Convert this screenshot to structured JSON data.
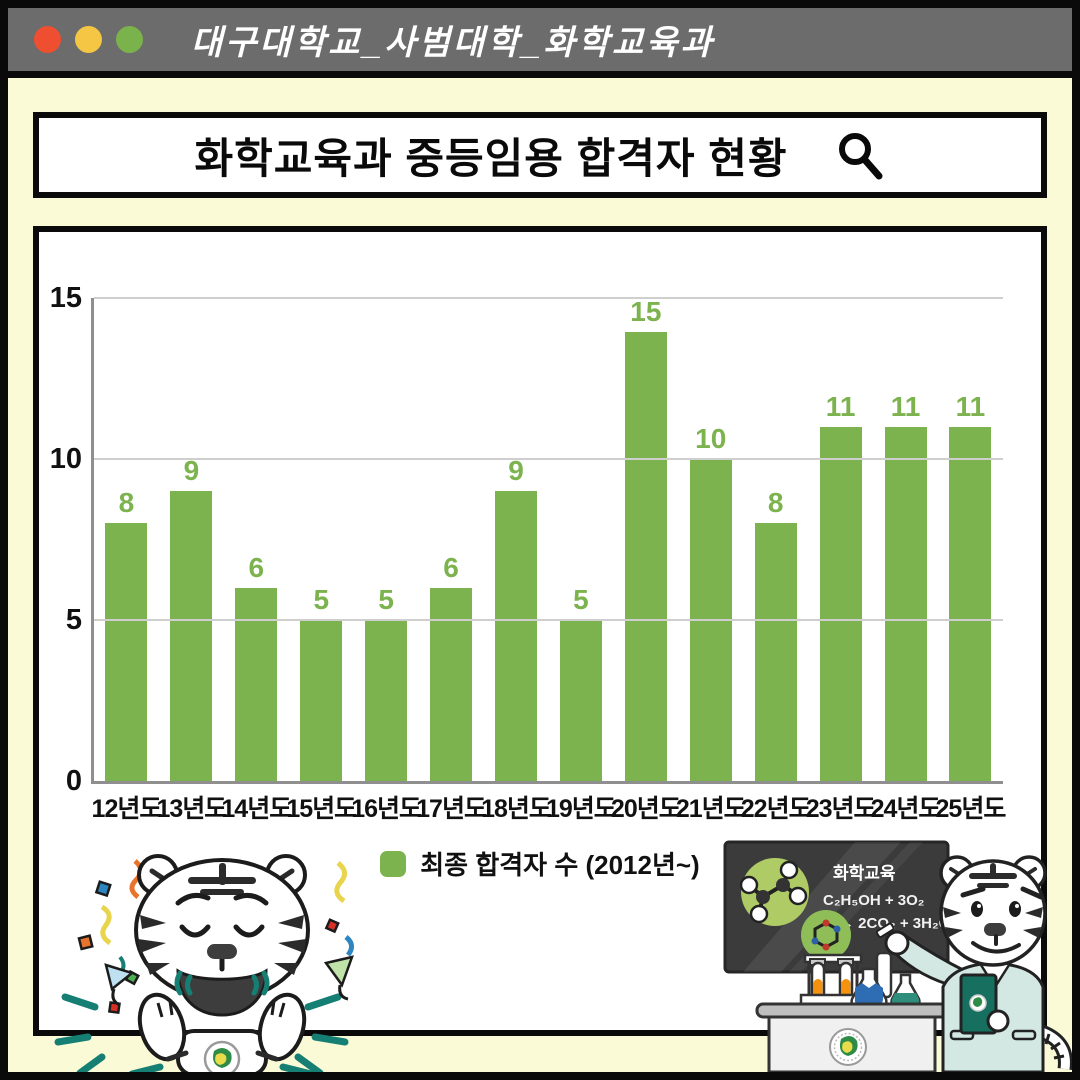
{
  "window": {
    "title": "대구대학교_사범대학_화학교육과",
    "dot_colors": [
      "#F04E31",
      "#F5C644",
      "#7AB34C"
    ]
  },
  "header": {
    "title": "화학교육과 중등임용 합격자 현황",
    "search_icon": "search-icon"
  },
  "chart_data": {
    "type": "bar",
    "categories": [
      "12년도",
      "13년도",
      "14년도",
      "15년도",
      "16년도",
      "17년도",
      "18년도",
      "19년도",
      "20년도",
      "21년도",
      "22년도",
      "23년도",
      "24년도",
      "25년도"
    ],
    "values": [
      8,
      9,
      6,
      5,
      5,
      6,
      9,
      5,
      15,
      10,
      8,
      11,
      11,
      11
    ],
    "series_name": "최종 합격자 수 (2012년~)",
    "title": "화학교육과 중등임용 합격자 현황",
    "xlabel": "",
    "ylabel": "",
    "ylim": [
      0,
      15
    ],
    "yticks": [
      0,
      5,
      10,
      15
    ],
    "grid": true,
    "legend_position": "bottom",
    "bar_color": "#7CB34E",
    "value_label_color": "#7CB34E"
  },
  "chalkboard": {
    "title": "화학교육",
    "equation_line1": "C₂H₅OH + 3O₂",
    "equation_line2": "→ 2CO₂ + 3H₂O"
  },
  "colors": {
    "background": "#FAFAD6",
    "titlebar": "#6C6C6C",
    "accent_teal": "#167F74",
    "chalkboard": "#3B3B3B",
    "lab_coat": "#D3E7E3"
  }
}
